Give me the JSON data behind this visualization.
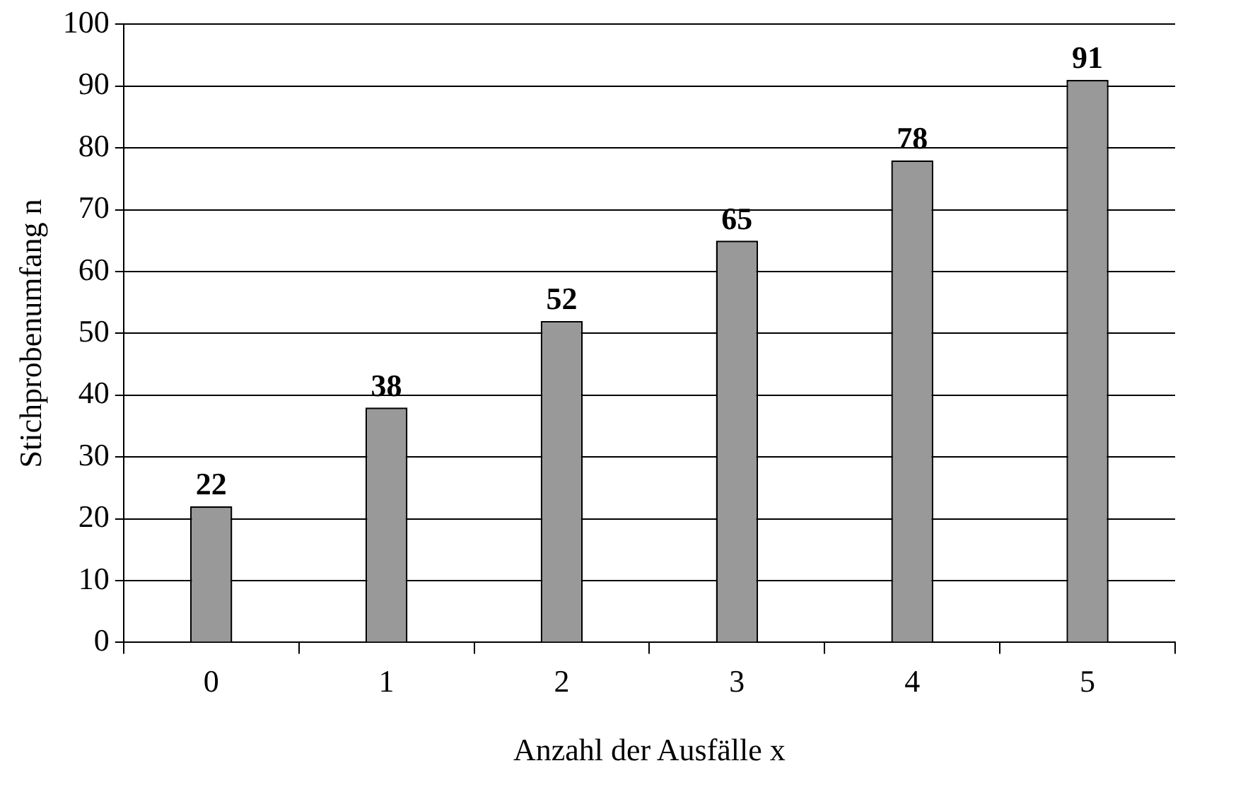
{
  "chart_data": {
    "type": "bar",
    "xlabel": "Anzahl der Ausfälle x",
    "ylabel": "Stichprobenumfang n",
    "categories": [
      "0",
      "1",
      "2",
      "3",
      "4",
      "5"
    ],
    "values": [
      22,
      38,
      52,
      65,
      78,
      91
    ],
    "color": "#999999",
    "ylim": [
      0,
      100
    ],
    "yticks": [
      0,
      10,
      20,
      30,
      40,
      50,
      60,
      70,
      80,
      90,
      100
    ],
    "grid": "y",
    "data_labels": true
  }
}
